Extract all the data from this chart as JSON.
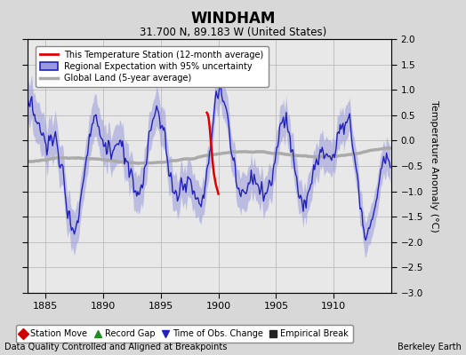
{
  "title": "WINDHAM",
  "subtitle": "31.700 N, 89.183 W (United States)",
  "ylabel": "Temperature Anomaly (°C)",
  "xlabel_note": "Data Quality Controlled and Aligned at Breakpoints",
  "credit": "Berkeley Earth",
  "xlim": [
    1883.5,
    1915.0
  ],
  "ylim": [
    -3,
    2
  ],
  "yticks": [
    -3,
    -2.5,
    -2,
    -1.5,
    -1,
    -0.5,
    0,
    0.5,
    1,
    1.5,
    2
  ],
  "xticks": [
    1885,
    1890,
    1895,
    1900,
    1905,
    1910
  ],
  "bg_color": "#d8d8d8",
  "plot_bg_color": "#e8e8e8",
  "regional_color": "#2222bb",
  "regional_fill_color": "#9999dd",
  "global_color": "#aaaaaa",
  "station_color": "#dd0000",
  "obs_change_marker_color": "#2222bb",
  "legend_items": [
    {
      "label": "This Temperature Station (12-month average)",
      "color": "#dd0000",
      "lw": 1.5
    },
    {
      "label": "Regional Expectation with 95% uncertainty",
      "color": "#2222bb",
      "lw": 1.5
    },
    {
      "label": "Global Land (5-year average)",
      "color": "#aaaaaa",
      "lw": 2.5
    }
  ],
  "bottom_legend": [
    {
      "label": "Station Move",
      "color": "#cc0000",
      "marker": "D"
    },
    {
      "label": "Record Gap",
      "color": "#228B22",
      "marker": "^"
    },
    {
      "label": "Time of Obs. Change",
      "color": "#2222bb",
      "marker": "v"
    },
    {
      "label": "Empirical Break",
      "color": "#222222",
      "marker": "s"
    }
  ]
}
